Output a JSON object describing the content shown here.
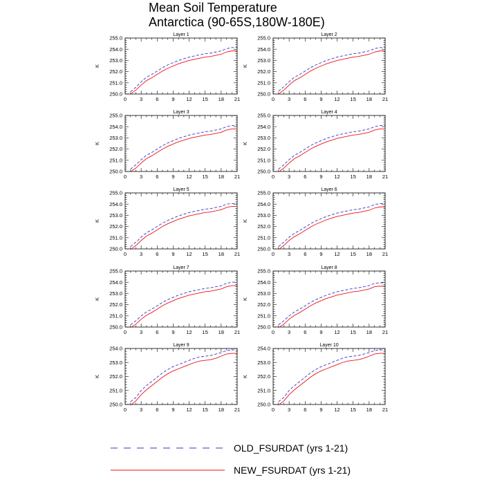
{
  "title": {
    "line1": "Mean Soil Temperature",
    "line2": "Antarctica (90-65S,180W-180E)"
  },
  "legend": [
    {
      "label": "OLD_FSURDAT (yrs 1-21)",
      "color": "#3333cc",
      "style": "dashed"
    },
    {
      "label": "NEW_FSURDAT (yrs 1-21)",
      "color": "#ee1111",
      "style": "solid"
    }
  ],
  "chart_data": [
    {
      "type": "line",
      "title": "Layer 1",
      "ylabel": "K",
      "xlim": [
        0,
        21
      ],
      "ylim": [
        250,
        255
      ],
      "xticks": [
        "0",
        "3",
        "6",
        "9",
        "12",
        "15",
        "18",
        "21"
      ],
      "yticks": [
        "250.0",
        "251.0",
        "252.0",
        "253.0",
        "254.0",
        "255.0"
      ],
      "x": [
        1,
        2,
        3,
        4,
        5,
        6,
        7,
        8,
        9,
        10,
        11,
        12,
        13,
        14,
        15,
        16,
        17,
        18,
        19,
        20,
        21
      ],
      "series": [
        {
          "name": "OLD_FSURDAT (yrs 1-21)",
          "values": [
            250.2,
            250.6,
            251.1,
            251.5,
            251.75,
            252.05,
            252.35,
            252.6,
            252.8,
            253.0,
            253.15,
            253.3,
            253.4,
            253.5,
            253.6,
            253.65,
            253.75,
            253.85,
            254.05,
            254.15,
            254.15
          ]
        },
        {
          "name": "NEW_FSURDAT (yrs 1-21)",
          "values": [
            250.0,
            250.35,
            250.8,
            251.2,
            251.45,
            251.75,
            252.05,
            252.3,
            252.5,
            252.7,
            252.85,
            253.0,
            253.1,
            253.2,
            253.3,
            253.35,
            253.45,
            253.55,
            253.75,
            253.85,
            253.85
          ]
        }
      ]
    },
    {
      "type": "line",
      "title": "Layer 2",
      "ylabel": "K",
      "xlim": [
        0,
        21
      ],
      "ylim": [
        250,
        255
      ],
      "xticks": [
        "0",
        "3",
        "6",
        "9",
        "12",
        "15",
        "18",
        "21"
      ],
      "yticks": [
        "250.0",
        "251.0",
        "252.0",
        "253.0",
        "254.0",
        "255.0"
      ],
      "x": [
        1,
        2,
        3,
        4,
        5,
        6,
        7,
        8,
        9,
        10,
        11,
        12,
        13,
        14,
        15,
        16,
        17,
        18,
        19,
        20,
        21
      ],
      "series": [
        {
          "name": "OLD_FSURDAT (yrs 1-21)",
          "values": [
            250.25,
            250.65,
            251.1,
            251.5,
            251.75,
            252.05,
            252.35,
            252.6,
            252.8,
            253.0,
            253.15,
            253.3,
            253.4,
            253.5,
            253.6,
            253.65,
            253.75,
            253.85,
            254.05,
            254.15,
            254.15
          ]
        },
        {
          "name": "NEW_FSURDAT (yrs 1-21)",
          "values": [
            250.0,
            250.35,
            250.8,
            251.2,
            251.45,
            251.75,
            252.05,
            252.3,
            252.5,
            252.7,
            252.85,
            253.0,
            253.1,
            253.2,
            253.3,
            253.35,
            253.45,
            253.55,
            253.75,
            253.85,
            253.85
          ]
        }
      ]
    },
    {
      "type": "line",
      "title": "Layer 3",
      "ylabel": "K",
      "xlim": [
        0,
        21
      ],
      "ylim": [
        250,
        255
      ],
      "xticks": [
        "0",
        "3",
        "6",
        "9",
        "12",
        "15",
        "18",
        "21"
      ],
      "yticks": [
        "250.0",
        "251.0",
        "252.0",
        "253.0",
        "254.0",
        "255.0"
      ],
      "x": [
        1,
        2,
        3,
        4,
        5,
        6,
        7,
        8,
        9,
        10,
        11,
        12,
        13,
        14,
        15,
        16,
        17,
        18,
        19,
        20,
        21
      ],
      "series": [
        {
          "name": "OLD_FSURDAT (yrs 1-21)",
          "values": [
            250.2,
            250.6,
            251.05,
            251.45,
            251.7,
            252.0,
            252.3,
            252.55,
            252.75,
            252.95,
            253.1,
            253.25,
            253.35,
            253.45,
            253.55,
            253.6,
            253.7,
            253.8,
            254.0,
            254.1,
            254.1
          ]
        },
        {
          "name": "NEW_FSURDAT (yrs 1-21)",
          "values": [
            250.0,
            250.3,
            250.75,
            251.15,
            251.4,
            251.7,
            252.0,
            252.25,
            252.45,
            252.65,
            252.8,
            252.95,
            253.05,
            253.15,
            253.25,
            253.3,
            253.4,
            253.5,
            253.7,
            253.8,
            253.8
          ]
        }
      ]
    },
    {
      "type": "line",
      "title": "Layer 4",
      "ylabel": "K",
      "xlim": [
        0,
        21
      ],
      "ylim": [
        250,
        255
      ],
      "xticks": [
        "0",
        "3",
        "6",
        "9",
        "12",
        "15",
        "18",
        "21"
      ],
      "yticks": [
        "250.0",
        "251.0",
        "252.0",
        "253.0",
        "254.0",
        "255.0"
      ],
      "x": [
        1,
        2,
        3,
        4,
        5,
        6,
        7,
        8,
        9,
        10,
        11,
        12,
        13,
        14,
        15,
        16,
        17,
        18,
        19,
        20,
        21
      ],
      "series": [
        {
          "name": "OLD_FSURDAT (yrs 1-21)",
          "values": [
            250.2,
            250.6,
            251.05,
            251.45,
            251.7,
            252.0,
            252.3,
            252.55,
            252.75,
            252.95,
            253.1,
            253.25,
            253.35,
            253.45,
            253.55,
            253.6,
            253.7,
            253.8,
            254.0,
            254.1,
            254.1
          ]
        },
        {
          "name": "NEW_FSURDAT (yrs 1-21)",
          "values": [
            249.95,
            250.3,
            250.75,
            251.15,
            251.4,
            251.7,
            252.0,
            252.25,
            252.45,
            252.65,
            252.8,
            252.95,
            253.05,
            253.15,
            253.25,
            253.3,
            253.4,
            253.5,
            253.7,
            253.8,
            253.8
          ]
        }
      ]
    },
    {
      "type": "line",
      "title": "Layer 5",
      "ylabel": "K",
      "xlim": [
        0,
        21
      ],
      "ylim": [
        250,
        255
      ],
      "xticks": [
        "0",
        "3",
        "6",
        "9",
        "12",
        "15",
        "18",
        "21"
      ],
      "yticks": [
        "250.0",
        "251.0",
        "252.0",
        "253.0",
        "254.0",
        "255.0"
      ],
      "x": [
        1,
        2,
        3,
        4,
        5,
        6,
        7,
        8,
        9,
        10,
        11,
        12,
        13,
        14,
        15,
        16,
        17,
        18,
        19,
        20,
        21
      ],
      "series": [
        {
          "name": "OLD_FSURDAT (yrs 1-21)",
          "values": [
            250.2,
            250.6,
            251.05,
            251.45,
            251.7,
            252.0,
            252.3,
            252.55,
            252.75,
            252.95,
            253.1,
            253.25,
            253.35,
            253.45,
            253.55,
            253.6,
            253.7,
            253.8,
            254.0,
            254.05,
            254.05
          ]
        },
        {
          "name": "NEW_FSURDAT (yrs 1-21)",
          "values": [
            249.95,
            250.3,
            250.75,
            251.15,
            251.4,
            251.7,
            252.0,
            252.25,
            252.45,
            252.65,
            252.8,
            252.95,
            253.05,
            253.15,
            253.25,
            253.3,
            253.4,
            253.5,
            253.7,
            253.8,
            253.8
          ]
        }
      ]
    },
    {
      "type": "line",
      "title": "Layer 6",
      "ylabel": "K",
      "xlim": [
        0,
        21
      ],
      "ylim": [
        250,
        255
      ],
      "xticks": [
        "0",
        "3",
        "6",
        "9",
        "12",
        "15",
        "18",
        "21"
      ],
      "yticks": [
        "250.0",
        "251.0",
        "252.0",
        "253.0",
        "254.0",
        "255.0"
      ],
      "x": [
        1,
        2,
        3,
        4,
        5,
        6,
        7,
        8,
        9,
        10,
        11,
        12,
        13,
        14,
        15,
        16,
        17,
        18,
        19,
        20,
        21
      ],
      "series": [
        {
          "name": "OLD_FSURDAT (yrs 1-21)",
          "values": [
            250.2,
            250.6,
            251.05,
            251.4,
            251.65,
            251.95,
            252.25,
            252.5,
            252.7,
            252.9,
            253.05,
            253.2,
            253.3,
            253.4,
            253.5,
            253.55,
            253.65,
            253.75,
            253.95,
            254.05,
            254.05
          ]
        },
        {
          "name": "NEW_FSURDAT (yrs 1-21)",
          "values": [
            249.95,
            250.3,
            250.75,
            251.1,
            251.35,
            251.65,
            251.95,
            252.2,
            252.4,
            252.6,
            252.75,
            252.9,
            253.0,
            253.1,
            253.2,
            253.25,
            253.35,
            253.45,
            253.65,
            253.75,
            253.75
          ]
        }
      ]
    },
    {
      "type": "line",
      "title": "Layer 7",
      "ylabel": "K",
      "xlim": [
        0,
        21
      ],
      "ylim": [
        250,
        255
      ],
      "xticks": [
        "0",
        "3",
        "6",
        "9",
        "12",
        "15",
        "18",
        "21"
      ],
      "yticks": [
        "250.0",
        "251.0",
        "252.0",
        "253.0",
        "254.0",
        "255.0"
      ],
      "x": [
        1,
        2,
        3,
        4,
        5,
        6,
        7,
        8,
        9,
        10,
        11,
        12,
        13,
        14,
        15,
        16,
        17,
        18,
        19,
        20,
        21
      ],
      "series": [
        {
          "name": "OLD_FSURDAT (yrs 1-21)",
          "values": [
            250.2,
            250.55,
            251.0,
            251.35,
            251.6,
            251.9,
            252.2,
            252.45,
            252.65,
            252.85,
            253.0,
            253.15,
            253.25,
            253.35,
            253.45,
            253.5,
            253.6,
            253.7,
            253.9,
            254.0,
            254.0
          ]
        },
        {
          "name": "NEW_FSURDAT (yrs 1-21)",
          "values": [
            249.95,
            250.25,
            250.7,
            251.05,
            251.3,
            251.6,
            251.9,
            252.15,
            252.35,
            252.55,
            252.7,
            252.85,
            252.95,
            253.05,
            253.15,
            253.2,
            253.3,
            253.4,
            253.6,
            253.7,
            253.7
          ]
        }
      ]
    },
    {
      "type": "line",
      "title": "Layer 8",
      "ylabel": "K",
      "xlim": [
        0,
        21
      ],
      "ylim": [
        250,
        255
      ],
      "xticks": [
        "0",
        "3",
        "6",
        "9",
        "12",
        "15",
        "18",
        "21"
      ],
      "yticks": [
        "250.0",
        "251.0",
        "252.0",
        "253.0",
        "254.0",
        "255.0"
      ],
      "x": [
        1,
        2,
        3,
        4,
        5,
        6,
        7,
        8,
        9,
        10,
        11,
        12,
        13,
        14,
        15,
        16,
        17,
        18,
        19,
        20,
        21
      ],
      "series": [
        {
          "name": "OLD_FSURDAT (yrs 1-21)",
          "values": [
            250.2,
            250.55,
            251.0,
            251.35,
            251.6,
            251.9,
            252.2,
            252.45,
            252.65,
            252.85,
            253.0,
            253.15,
            253.25,
            253.35,
            253.45,
            253.5,
            253.6,
            253.7,
            253.9,
            253.95,
            253.95
          ]
        },
        {
          "name": "NEW_FSURDAT (yrs 1-21)",
          "values": [
            249.95,
            250.25,
            250.7,
            251.05,
            251.3,
            251.6,
            251.9,
            252.15,
            252.35,
            252.55,
            252.7,
            252.85,
            252.95,
            253.05,
            253.15,
            253.2,
            253.3,
            253.4,
            253.6,
            253.65,
            253.65
          ]
        }
      ]
    },
    {
      "type": "line",
      "title": "Layer 9",
      "ylabel": "K",
      "xlim": [
        0,
        21
      ],
      "ylim": [
        250,
        254
      ],
      "xticks": [
        "0",
        "3",
        "6",
        "9",
        "12",
        "15",
        "18",
        "21"
      ],
      "yticks": [
        "250.0",
        "251.0",
        "252.0",
        "253.0",
        "254.0"
      ],
      "x": [
        1,
        2,
        3,
        4,
        5,
        6,
        7,
        8,
        9,
        10,
        11,
        12,
        13,
        14,
        15,
        16,
        17,
        18,
        19,
        20,
        21
      ],
      "series": [
        {
          "name": "OLD_FSURDAT (yrs 1-21)",
          "values": [
            250.2,
            250.5,
            251.0,
            251.35,
            251.65,
            251.95,
            252.25,
            252.5,
            252.7,
            252.85,
            253.0,
            253.15,
            253.3,
            253.4,
            253.45,
            253.5,
            253.6,
            253.7,
            253.85,
            253.9,
            253.9
          ]
        },
        {
          "name": "NEW_FSURDAT (yrs 1-21)",
          "values": [
            249.95,
            250.25,
            250.7,
            251.05,
            251.35,
            251.65,
            251.95,
            252.2,
            252.4,
            252.55,
            252.7,
            252.85,
            253.0,
            253.1,
            253.15,
            253.2,
            253.3,
            253.45,
            253.6,
            253.65,
            253.65
          ]
        }
      ]
    },
    {
      "type": "line",
      "title": "Layer 10",
      "ylabel": "K",
      "xlim": [
        0,
        21
      ],
      "ylim": [
        250,
        254
      ],
      "xticks": [
        "0",
        "3",
        "6",
        "9",
        "12",
        "15",
        "18",
        "21"
      ],
      "yticks": [
        "250.0",
        "251.0",
        "252.0",
        "253.0",
        "254.0"
      ],
      "x": [
        1,
        2,
        3,
        4,
        5,
        6,
        7,
        8,
        9,
        10,
        11,
        12,
        13,
        14,
        15,
        16,
        17,
        18,
        19,
        20,
        21
      ],
      "series": [
        {
          "name": "OLD_FSURDAT (yrs 1-21)",
          "values": [
            250.2,
            250.5,
            251.0,
            251.35,
            251.65,
            251.95,
            252.25,
            252.5,
            252.7,
            252.85,
            253.0,
            253.15,
            253.3,
            253.4,
            253.45,
            253.5,
            253.6,
            253.7,
            253.85,
            253.9,
            253.9
          ]
        },
        {
          "name": "NEW_FSURDAT (yrs 1-21)",
          "values": [
            249.95,
            250.25,
            250.7,
            251.05,
            251.35,
            251.65,
            251.95,
            252.2,
            252.4,
            252.55,
            252.7,
            252.85,
            253.0,
            253.1,
            253.15,
            253.2,
            253.3,
            253.45,
            253.6,
            253.65,
            253.65
          ]
        }
      ]
    }
  ]
}
